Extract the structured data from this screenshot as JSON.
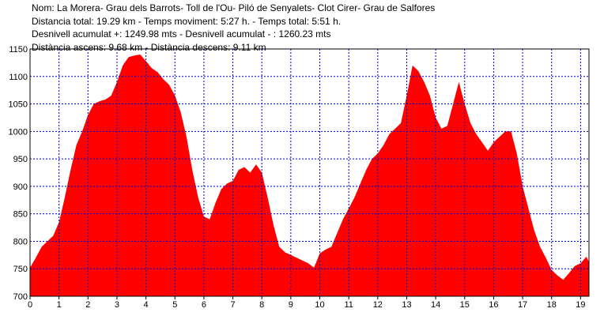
{
  "header": {
    "name": "Nom: La Morera- Grau dels Barrots- Toll de l'Ou- Piló de Senyalets- Clot Cirer- Grau de Salfores",
    "distance_time": "Distancia total: 19.29 km - Temps moviment: 5:27 h. - Temps total: 5:51 h.",
    "elevation_gain": "Desnivell acumulat +: 1249.98 mts - Desnivell acumulat - : 1260.23 mts",
    "ascent_descent": "Distància ascens: 9.68 km - Distància descens: 9.11 km"
  },
  "colors": {
    "fill": "#ff0000",
    "grid": "#0000cc",
    "axis": "#000000"
  },
  "chart_data": {
    "type": "area",
    "title": "",
    "xlabel": "",
    "ylabel": "",
    "xlim": [
      0,
      19.29
    ],
    "ylim": [
      700,
      1150
    ],
    "x_ticks": [
      0,
      1,
      2,
      3,
      4,
      5,
      6,
      7,
      8,
      9,
      10,
      11,
      12,
      13,
      14,
      15,
      16,
      17,
      18,
      19
    ],
    "x_tick_labels": [
      "0",
      "1",
      "2",
      "3",
      "4",
      "5",
      "6",
      "7",
      "8",
      "9",
      "10",
      "11",
      "12",
      "13",
      "14",
      "15",
      "16",
      "17",
      "18",
      "19"
    ],
    "y_ticks": [
      700,
      750,
      800,
      850,
      900,
      950,
      1000,
      1050,
      1100,
      1150
    ],
    "y_tick_labels": [
      "700",
      "750",
      "800",
      "850",
      "900",
      "950",
      "1000",
      "1050",
      "1100",
      "1150"
    ],
    "grid": true,
    "series": [
      {
        "x": [
          0,
          0.2,
          0.4,
          0.6,
          0.8,
          1.0,
          1.2,
          1.4,
          1.6,
          1.8,
          2.0,
          2.2,
          2.4,
          2.6,
          2.8,
          3.0,
          3.2,
          3.4,
          3.6,
          3.8,
          4.0,
          4.2,
          4.4,
          4.6,
          4.8,
          5.0,
          5.2,
          5.4,
          5.6,
          5.8,
          6.0,
          6.2,
          6.4,
          6.6,
          6.8,
          7.0,
          7.2,
          7.4,
          7.6,
          7.8,
          8.0,
          8.2,
          8.4,
          8.6,
          8.8,
          9.0,
          9.2,
          9.4,
          9.6,
          9.8,
          10.0,
          10.2,
          10.4,
          10.6,
          10.8,
          11.0,
          11.2,
          11.4,
          11.6,
          11.8,
          12.0,
          12.2,
          12.4,
          12.6,
          12.8,
          13.0,
          13.2,
          13.4,
          13.6,
          13.8,
          14.0,
          14.2,
          14.4,
          14.6,
          14.8,
          15.0,
          15.2,
          15.4,
          15.6,
          15.8,
          16.0,
          16.2,
          16.4,
          16.6,
          16.8,
          17.0,
          17.2,
          17.4,
          17.6,
          17.8,
          18.0,
          18.2,
          18.4,
          18.6,
          18.8,
          19.0,
          19.2,
          19.29
        ],
        "y": [
          752,
          770,
          790,
          800,
          810,
          835,
          880,
          930,
          975,
          1000,
          1030,
          1050,
          1055,
          1058,
          1065,
          1090,
          1120,
          1135,
          1138,
          1140,
          1128,
          1115,
          1108,
          1095,
          1085,
          1065,
          1035,
          990,
          930,
          880,
          845,
          840,
          870,
          895,
          905,
          910,
          930,
          935,
          925,
          940,
          925,
          880,
          830,
          790,
          780,
          775,
          770,
          765,
          760,
          752,
          778,
          785,
          790,
          815,
          840,
          860,
          880,
          905,
          930,
          950,
          960,
          975,
          995,
          1005,
          1015,
          1065,
          1120,
          1110,
          1090,
          1065,
          1025,
          1005,
          1010,
          1050,
          1090,
          1050,
          1015,
          995,
          980,
          965,
          980,
          990,
          1000,
          1000,
          960,
          900,
          860,
          820,
          790,
          770,
          748,
          738,
          730,
          742,
          755,
          760,
          772,
          762
        ]
      }
    ]
  }
}
